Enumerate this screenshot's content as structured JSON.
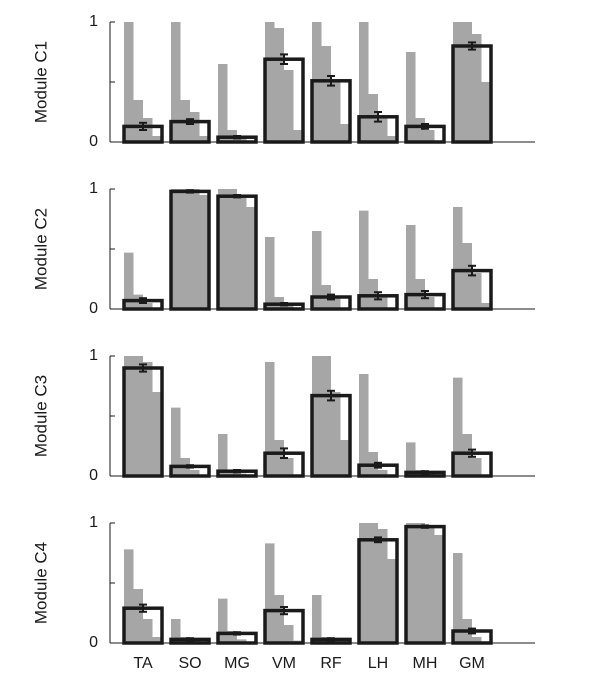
{
  "chart_data": [
    {
      "type": "bar",
      "ylabel": "Module C1",
      "ylim": [
        0,
        1
      ],
      "yticks": [
        0,
        1
      ],
      "minor_yticks": [
        0.5
      ],
      "grid": false,
      "bar_color": "#1a1a1a",
      "dist_color": "#a6a6a6",
      "values": [
        0.13,
        0.17,
        0.04,
        0.69,
        0.51,
        0.21,
        0.13,
        0.8
      ],
      "errors": [
        0.03,
        0.02,
        0.01,
        0.04,
        0.04,
        0.04,
        0.02,
        0.03
      ],
      "dist": [
        [
          1,
          0.35,
          0.2,
          0.05
        ],
        [
          1,
          0.35,
          0.25,
          0.05
        ],
        [
          0.65,
          0.1,
          0.05,
          0
        ],
        [
          1,
          0.95,
          0.6,
          0.1
        ],
        [
          1,
          0.8,
          0.5,
          0.15
        ],
        [
          1,
          0.4,
          0.2,
          0.05
        ],
        [
          0.75,
          0.2,
          0.1,
          0
        ],
        [
          1,
          1,
          0.9,
          0.5
        ]
      ]
    },
    {
      "type": "bar",
      "ylabel": "Module C2",
      "ylim": [
        0,
        1
      ],
      "yticks": [
        0,
        1
      ],
      "minor_yticks": [
        0.5
      ],
      "grid": false,
      "bar_color": "#1a1a1a",
      "dist_color": "#a6a6a6",
      "values": [
        0.07,
        0.98,
        0.94,
        0.04,
        0.1,
        0.11,
        0.12,
        0.32
      ],
      "errors": [
        0.02,
        0.01,
        0.01,
        0.01,
        0.02,
        0.03,
        0.03,
        0.04
      ],
      "dist": [
        [
          0.47,
          0.12,
          0.05,
          0
        ],
        [
          1,
          1,
          1,
          0.95
        ],
        [
          1,
          1,
          0.95,
          0.85
        ],
        [
          0.6,
          0.1,
          0.03,
          0
        ],
        [
          0.65,
          0.2,
          0.1,
          0
        ],
        [
          0.82,
          0.25,
          0.1,
          0
        ],
        [
          0.7,
          0.25,
          0.1,
          0
        ],
        [
          0.85,
          0.55,
          0.3,
          0.05
        ]
      ]
    },
    {
      "type": "bar",
      "ylabel": "Module C3",
      "ylim": [
        0,
        1
      ],
      "yticks": [
        0,
        1
      ],
      "minor_yticks": [
        0.5
      ],
      "grid": false,
      "bar_color": "#1a1a1a",
      "dist_color": "#a6a6a6",
      "values": [
        0.9,
        0.08,
        0.04,
        0.19,
        0.67,
        0.09,
        0.03,
        0.19
      ],
      "errors": [
        0.03,
        0.01,
        0.01,
        0.04,
        0.04,
        0.02,
        0.01,
        0.03
      ],
      "dist": [
        [
          1,
          1,
          0.95,
          0.7
        ],
        [
          0.57,
          0.15,
          0.05,
          0
        ],
        [
          0.35,
          0.05,
          0.02,
          0
        ],
        [
          0.95,
          0.3,
          0.15,
          0
        ],
        [
          1,
          1,
          0.7,
          0.3
        ],
        [
          0.85,
          0.2,
          0.05,
          0
        ],
        [
          0.28,
          0.05,
          0.02,
          0
        ],
        [
          0.82,
          0.35,
          0.15,
          0
        ]
      ]
    },
    {
      "type": "bar",
      "ylabel": "Module C4",
      "ylim": [
        0,
        1
      ],
      "yticks": [
        0,
        1
      ],
      "minor_yticks": [
        0.5
      ],
      "grid": false,
      "bar_color": "#1a1a1a",
      "dist_color": "#a6a6a6",
      "categories": [
        "TA",
        "SO",
        "MG",
        "VM",
        "RF",
        "LH",
        "MH",
        "GM"
      ],
      "values": [
        0.29,
        0.03,
        0.08,
        0.27,
        0.03,
        0.86,
        0.97,
        0.1
      ],
      "errors": [
        0.03,
        0.01,
        0.01,
        0.03,
        0.01,
        0.02,
        0.01,
        0.02
      ],
      "dist": [
        [
          0.78,
          0.45,
          0.2,
          0.05
        ],
        [
          0.2,
          0.05,
          0.02,
          0
        ],
        [
          0.37,
          0.1,
          0.03,
          0
        ],
        [
          0.83,
          0.4,
          0.15,
          0.02
        ],
        [
          0.4,
          0.05,
          0.01,
          0
        ],
        [
          1,
          1,
          0.95,
          0.7
        ],
        [
          1,
          1,
          0.98,
          0.9
        ],
        [
          0.75,
          0.2,
          0.05,
          0
        ]
      ]
    }
  ]
}
